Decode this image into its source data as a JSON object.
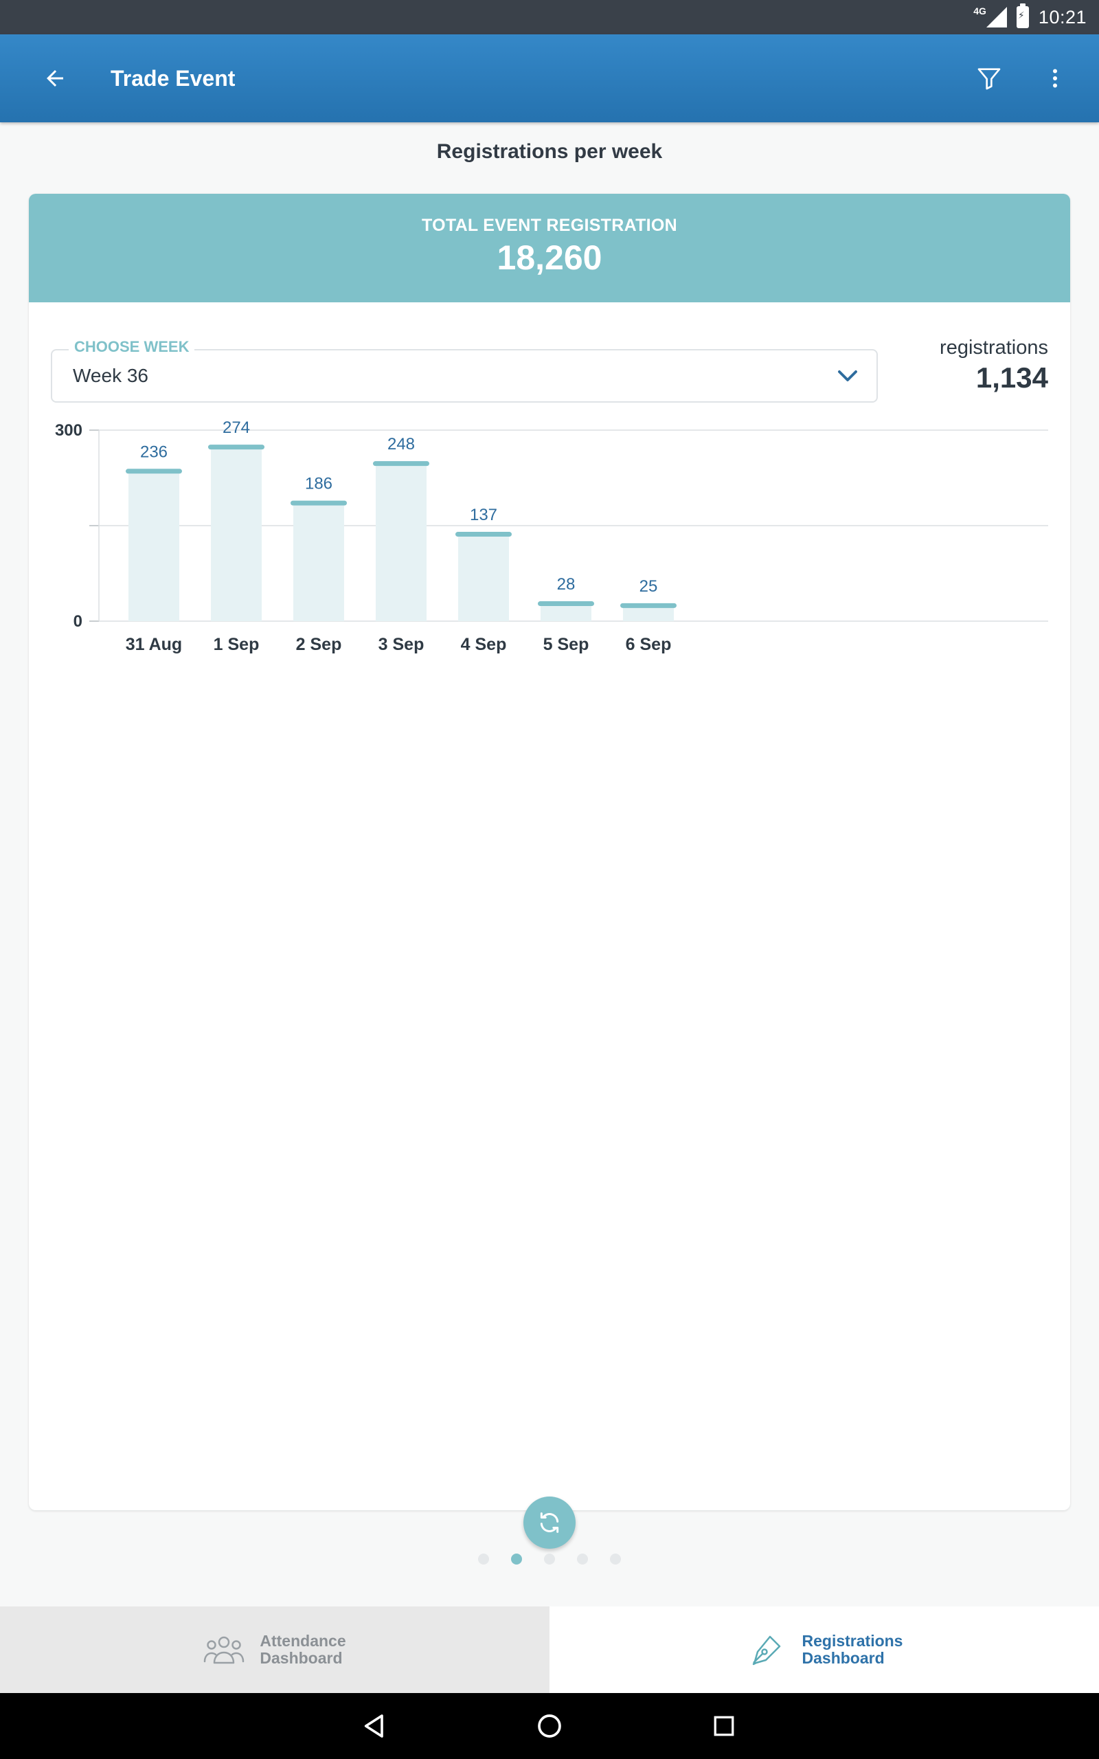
{
  "status_bar": {
    "network": "4G",
    "time": "10:21"
  },
  "app_bar": {
    "title": "Trade Event"
  },
  "page": {
    "title": "Registrations per week"
  },
  "total": {
    "label": "TOTAL EVENT REGISTRATION",
    "value": "18,260"
  },
  "week_select": {
    "label": "CHOOSE WEEK",
    "value": "Week 36"
  },
  "registrations": {
    "label": "registrations",
    "value": "1,134"
  },
  "chart_data": {
    "type": "bar",
    "categories": [
      "31 Aug",
      "1 Sep",
      "2 Sep",
      "3 Sep",
      "4 Sep",
      "5 Sep",
      "6 Sep"
    ],
    "values": [
      236,
      274,
      186,
      248,
      137,
      28,
      25
    ],
    "ylim": [
      0,
      300
    ],
    "yticks": [
      0,
      150,
      300
    ],
    "ytick_labels": [
      "0",
      "",
      "300"
    ],
    "grid": true,
    "bar_color": "#e6f2f4",
    "cap_color": "#7fc1c9",
    "label_color": "#2e6c9e"
  },
  "pager": {
    "count": 5,
    "active": 1
  },
  "bottom_nav": {
    "tabs": [
      {
        "label_line1": "Attendance",
        "label_line2": "Dashboard",
        "icon": "people-icon",
        "active": false
      },
      {
        "label_line1": "Registrations",
        "label_line2": "Dashboard",
        "icon": "pen-icon",
        "active": true
      }
    ]
  },
  "colors": {
    "accent": "#7fc1c9",
    "app_bar": "#2d7dbd",
    "active_text": "#2e72a9"
  }
}
